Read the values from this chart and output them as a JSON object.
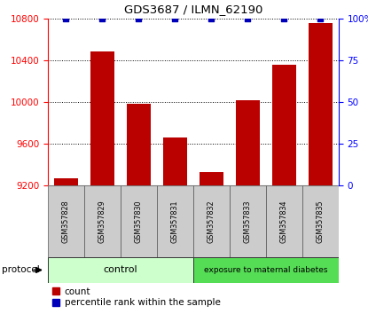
{
  "title": "GDS3687 / ILMN_62190",
  "samples": [
    "GSM357828",
    "GSM357829",
    "GSM357830",
    "GSM357831",
    "GSM357832",
    "GSM357833",
    "GSM357834",
    "GSM357835"
  ],
  "counts": [
    9270,
    10490,
    9980,
    9660,
    9330,
    10020,
    10360,
    10760
  ],
  "percentile_ranks": [
    100,
    100,
    100,
    100,
    100,
    100,
    100,
    100
  ],
  "ylim_left": [
    9200,
    10800
  ],
  "ylim_right": [
    0,
    100
  ],
  "yticks_left": [
    9200,
    9600,
    10000,
    10400,
    10800
  ],
  "yticks_right": [
    0,
    25,
    50,
    75,
    100
  ],
  "bar_color": "#bb0000",
  "marker_color": "#0000bb",
  "control_color": "#ccffcc",
  "exposure_color": "#55dd55",
  "control_indices": [
    0,
    1,
    2,
    3
  ],
  "exposure_indices": [
    4,
    5,
    6,
    7
  ],
  "control_label": "control",
  "exposure_label": "exposure to maternal diabetes",
  "legend_count_label": "count",
  "legend_percentile_label": "percentile rank within the sample",
  "protocol_label": "protocol"
}
